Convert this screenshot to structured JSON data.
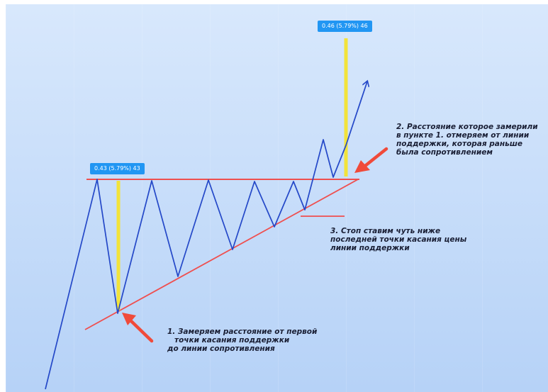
{
  "measure_labels": {
    "left": "0.43 (5.79%) 43",
    "right": "0.46 (5.79%) 46"
  },
  "notes": {
    "note1": [
      "1. Замеряем расстояние от первой",
      "точки касания поддержки",
      "до линии сопротивления"
    ],
    "note2": [
      "2. Расстояние которое замерили",
      "в пункте 1. отмеряем от линии",
      "поддержки, которая раньше",
      "была сопротивлением"
    ],
    "note3": [
      "3. Стоп ставим чуть ниже",
      "последней точки касания цены",
      "линии поддержки"
    ]
  },
  "colors": {
    "background_top": "#d8e8fc",
    "background_bottom": "#b6d2f7",
    "price_line": "#2448c8",
    "resistance_line": "#ef4f4f",
    "support_line": "#ef4f4f",
    "measure_bar": "#f2e33a",
    "arrow": "#f04a3a",
    "badge": "#2196f3"
  }
}
